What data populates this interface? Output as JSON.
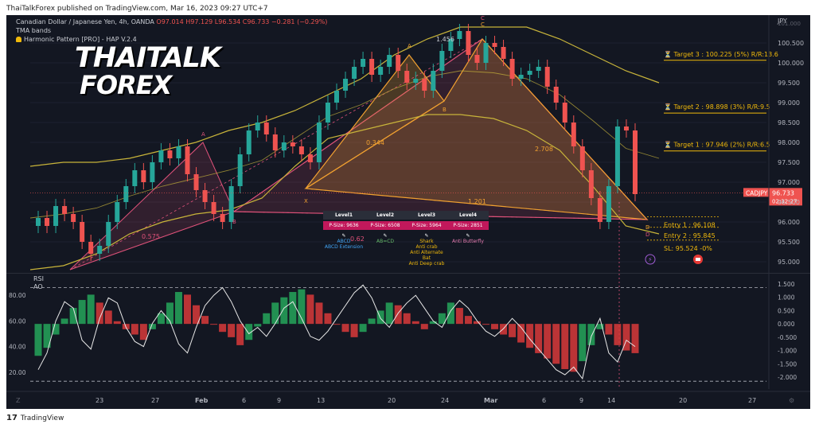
{
  "publisher_line": "ThaiTalkForex published on TradingView.com, Mar 16, 2023 09:27 UTC+7",
  "footer_brand": "TradingView",
  "logo": {
    "line1": "THAITALK",
    "line2": "FOREX"
  },
  "legend": {
    "symbol": "Canadian Dollar / Japanese Yen, 4h, OANDA",
    "ohlc": "O97.014  H97.129  L96.534  C96.733  −0.281 (−0.29%)",
    "indicator1": "TMA bands",
    "indicator2": "Harmonic Pattern [PRO] - HAP V.2.4"
  },
  "colors": {
    "background": "#131722",
    "up": "#26a69a",
    "down": "#ef5350",
    "band": "#c8b43a",
    "pattern_pink": "#e0527a",
    "pattern_orange": "#f0a030",
    "price_tag": "#ef5350"
  },
  "price_axis": {
    "unit": "JPY",
    "ticks": [
      "100.500",
      "100.000",
      "99.500",
      "99.000",
      "98.500",
      "98.000",
      "97.500",
      "97.000",
      "96.500",
      "96.000",
      "95.500",
      "95.000"
    ],
    "top_faded": "101.000",
    "current_price": "96.733",
    "symbol_tag": "CADJPY",
    "countdown": "02:32:27"
  },
  "rsi_axis": {
    "ticks": [
      "80.00",
      "60.00",
      "40.00",
      "20.00"
    ]
  },
  "ao_axis": {
    "ticks": [
      "1.500",
      "1.000",
      "0.500",
      "0.000",
      "-0.500",
      "-1.000",
      "-1.500",
      "-2.000"
    ]
  },
  "sub_labels": {
    "rsi": "RSI",
    "ao": "AO"
  },
  "time_axis": [
    "23",
    "27",
    "Feb",
    "6",
    "9",
    "13",
    "20",
    "24",
    "Mar",
    "6",
    "9",
    "14",
    "20",
    "27"
  ],
  "axis_corner_labels": {
    "left": "Z",
    "right": "⚙"
  },
  "targets": [
    "Target 3 : 100.225 (5%) R/R:13.6",
    "Target 2 : 98.898 (3%) R/R:9.5",
    "Target 1 : 97.946 (2%) R/R:6.5"
  ],
  "entries": {
    "entry1": "Entry 1 : 96.108",
    "entry2": "Entry 2 : 95.845",
    "sl": "SL: 95.524 -0%"
  },
  "pattern_labels": {
    "C": "C",
    "A_left": "A",
    "B_left": "B",
    "X": "X",
    "A_mid": "A",
    "B_mid": "B",
    "D": "D",
    "ratio_1456": "1.456",
    "ratio_0344": "0.344",
    "ratio_2708": "2.708",
    "ratio_1201": "1.201",
    "ratio_0575": "0.575",
    "ratio_062": "0.62"
  },
  "levels_table": {
    "headers": [
      "Level1",
      "Level2",
      "Level3",
      "Level4"
    ],
    "psize": [
      "P-Size: 9636",
      "P-Size: 6508",
      "P-Size: 5964",
      "P-Size: 2851"
    ],
    "patterns": [
      [
        "ABCD",
        "ABCD Extension"
      ],
      [
        "AB=CD"
      ],
      [
        "Shark",
        "Anti crab",
        "Anti Alternate Bat",
        "Anti Deep crab"
      ],
      [
        "Anti Butterfly"
      ]
    ]
  },
  "chart_data": {
    "type": "line",
    "title": "Canadian Dollar / Japanese Yen, 4h, OANDA",
    "ylabel": "JPY",
    "ylim": [
      94.8,
      101.0
    ],
    "close": [
      96.1,
      95.9,
      96.4,
      96.2,
      96.0,
      95.5,
      95.2,
      95.4,
      96.0,
      96.5,
      96.9,
      97.3,
      97.0,
      97.5,
      97.8,
      97.6,
      97.9,
      97.2,
      96.8,
      96.5,
      96.2,
      96.0,
      96.9,
      97.7,
      98.3,
      98.5,
      98.2,
      97.8,
      98.0,
      97.9,
      97.7,
      97.5,
      98.5,
      99.0,
      99.3,
      99.6,
      99.9,
      100.1,
      99.7,
      99.9,
      100.2,
      99.8,
      99.5,
      99.6,
      99.3,
      99.8,
      100.3,
      100.6,
      100.8,
      100.2,
      100.0,
      100.5,
      100.4,
      100.1,
      99.6,
      99.7,
      99.8,
      99.9,
      99.4,
      99.0,
      98.5,
      97.9,
      97.3,
      96.6,
      96.0,
      96.9,
      98.4,
      98.3,
      96.7
    ],
    "band_upper": [
      97.4,
      97.5,
      97.5,
      97.6,
      97.8,
      98.0,
      98.3,
      98.5,
      98.8,
      99.2,
      99.6,
      100.2,
      100.6,
      100.9,
      100.9,
      100.9,
      100.6,
      100.2,
      99.8,
      99.5
    ],
    "band_lower": [
      94.8,
      94.9,
      95.2,
      95.7,
      96.0,
      96.2,
      96.3,
      96.6,
      97.4,
      98.1,
      98.3,
      98.5,
      98.7,
      98.7,
      98.6,
      98.3,
      97.8,
      96.9,
      95.9,
      95.7
    ],
    "rsi": [
      22,
      35,
      60,
      75,
      70,
      45,
      38,
      62,
      78,
      74,
      55,
      44,
      40,
      58,
      68,
      60,
      42,
      35,
      55,
      72,
      80,
      86,
      75,
      60,
      50,
      55,
      48,
      58,
      70,
      75,
      62,
      48,
      45,
      52,
      62,
      72,
      82,
      88,
      78,
      62,
      55,
      66,
      74,
      80,
      70,
      60,
      55,
      68,
      76,
      70,
      60,
      52,
      48,
      54,
      62,
      55,
      46,
      38,
      30,
      22,
      18,
      24,
      15,
      48,
      62,
      35,
      28,
      45,
      40
    ],
    "ao": [
      -1.2,
      -0.9,
      -0.4,
      0.2,
      0.6,
      0.9,
      1.1,
      0.8,
      0.5,
      0.1,
      -0.2,
      -0.4,
      -0.6,
      -0.2,
      0.4,
      0.8,
      1.2,
      1.1,
      0.7,
      0.3,
      0.0,
      -0.3,
      -0.5,
      -0.8,
      -0.6,
      -0.1,
      0.4,
      0.8,
      1.0,
      1.2,
      1.3,
      1.1,
      0.8,
      0.4,
      0.0,
      -0.3,
      -0.5,
      -0.3,
      0.2,
      0.5,
      0.8,
      0.7,
      0.4,
      0.1,
      -0.2,
      0.1,
      0.4,
      0.8,
      0.6,
      0.3,
      0.1,
      0.0,
      -0.2,
      -0.4,
      -0.5,
      -0.7,
      -0.9,
      -1.1,
      -1.3,
      -1.5,
      -1.7,
      -1.8,
      -1.4,
      -0.8,
      -0.2,
      -0.4,
      -0.8,
      -1.0,
      -1.1
    ]
  }
}
